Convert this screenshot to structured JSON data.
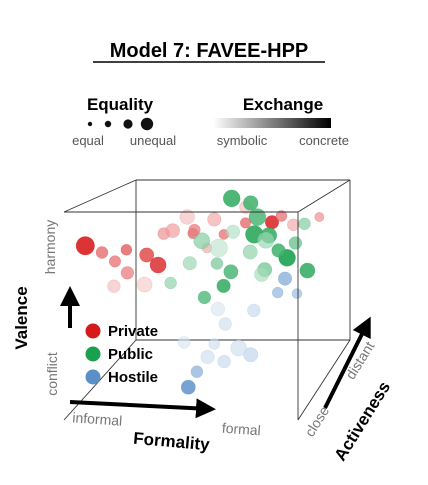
{
  "chart_data": {
    "type": "scatter3d",
    "title": "Model 7: FAVEE-HPP",
    "size_legend": {
      "title": "Equality",
      "low_label": "equal",
      "high_label": "unequal",
      "levels": [
        1,
        2,
        3,
        4
      ]
    },
    "shade_legend": {
      "title": "Exchange",
      "low_label": "symbolic",
      "high_label": "concrete"
    },
    "axes": {
      "x": {
        "label": "Formality",
        "low_label": "informal",
        "high_label": "formal",
        "range": [
          0,
          1
        ]
      },
      "y": {
        "label": "Activeness",
        "low_label": "close",
        "high_label": "distant",
        "range": [
          0,
          1
        ]
      },
      "z": {
        "label": "Valence",
        "low_label": "conflict",
        "high_label": "harmony",
        "range": [
          0,
          1
        ]
      }
    },
    "legend": {
      "position": "bottom-left",
      "show_series_names": true
    },
    "series": [
      {
        "name": "Private",
        "color": "#d7191c",
        "points": [
          {
            "x": 0.08,
            "y": 0.05,
            "z": 0.83,
            "equality": 3.2,
            "exchange": 0.95
          },
          {
            "x": 0.14,
            "y": 0.1,
            "z": 0.79,
            "equality": 1.6,
            "exchange": 0.6
          },
          {
            "x": 0.2,
            "y": 0.08,
            "z": 0.75,
            "equality": 1.5,
            "exchange": 0.55
          },
          {
            "x": 0.24,
            "y": 0.12,
            "z": 0.8,
            "equality": 1.4,
            "exchange": 0.65
          },
          {
            "x": 0.26,
            "y": 0.05,
            "z": 0.7,
            "equality": 1.8,
            "exchange": 0.5
          },
          {
            "x": 0.32,
            "y": 0.15,
            "z": 0.77,
            "equality": 2.2,
            "exchange": 0.75
          },
          {
            "x": 0.38,
            "y": 0.1,
            "z": 0.73,
            "equality": 2.6,
            "exchange": 0.85
          },
          {
            "x": 0.36,
            "y": 0.3,
            "z": 0.85,
            "equality": 1.6,
            "exchange": 0.4
          },
          {
            "x": 0.42,
            "y": 0.2,
            "z": 0.88,
            "equality": 2.1,
            "exchange": 0.35
          },
          {
            "x": 0.44,
            "y": 0.5,
            "z": 0.82,
            "equality": 1.3,
            "exchange": 0.6
          },
          {
            "x": 0.48,
            "y": 0.35,
            "z": 0.86,
            "equality": 1.5,
            "exchange": 0.5
          },
          {
            "x": 0.52,
            "y": 0.55,
            "z": 0.88,
            "equality": 2.0,
            "exchange": 0.3
          },
          {
            "x": 0.55,
            "y": 0.6,
            "z": 0.8,
            "equality": 1.2,
            "exchange": 0.55
          },
          {
            "x": 0.62,
            "y": 0.7,
            "z": 0.84,
            "equality": 1.3,
            "exchange": 0.6
          },
          {
            "x": 0.7,
            "y": 0.85,
            "z": 0.82,
            "equality": 2.0,
            "exchange": 0.9
          },
          {
            "x": 0.74,
            "y": 0.85,
            "z": 0.85,
            "equality": 1.4,
            "exchange": 0.55
          },
          {
            "x": 0.78,
            "y": 0.9,
            "z": 0.8,
            "equality": 1.6,
            "exchange": 0.3
          },
          {
            "x": 0.3,
            "y": 0.2,
            "z": 0.62,
            "equality": 2.4,
            "exchange": 0.15
          },
          {
            "x": 0.18,
            "y": 0.15,
            "z": 0.62,
            "equality": 1.8,
            "exchange": 0.2
          },
          {
            "x": 0.5,
            "y": 0.5,
            "z": 0.75,
            "equality": 1.2,
            "exchange": 0.3
          },
          {
            "x": 0.88,
            "y": 0.95,
            "z": 0.83,
            "equality": 1.0,
            "exchange": 0.4
          },
          {
            "x": 0.6,
            "y": 0.8,
            "z": 0.9,
            "equality": 1.8,
            "exchange": 0.2
          },
          {
            "x": 0.46,
            "y": 0.3,
            "z": 0.93,
            "equality": 2.3,
            "exchange": 0.2
          }
        ]
      },
      {
        "name": "Public",
        "color": "#1aa14f",
        "points": [
          {
            "x": 0.55,
            "y": 0.75,
            "z": 0.95,
            "equality": 2.8,
            "exchange": 0.85
          },
          {
            "x": 0.62,
            "y": 0.8,
            "z": 0.92,
            "equality": 2.3,
            "exchange": 0.8
          },
          {
            "x": 0.66,
            "y": 0.75,
            "z": 0.86,
            "equality": 2.8,
            "exchange": 0.75
          },
          {
            "x": 0.68,
            "y": 0.6,
            "z": 0.8,
            "equality": 3.0,
            "exchange": 0.9
          },
          {
            "x": 0.72,
            "y": 0.7,
            "z": 0.78,
            "equality": 2.5,
            "exchange": 0.85
          },
          {
            "x": 0.75,
            "y": 0.75,
            "z": 0.7,
            "equality": 2.0,
            "exchange": 0.8
          },
          {
            "x": 0.78,
            "y": 0.78,
            "z": 0.66,
            "equality": 2.8,
            "exchange": 0.95
          },
          {
            "x": 0.64,
            "y": 0.7,
            "z": 0.7,
            "equality": 2.2,
            "exchange": 0.4
          },
          {
            "x": 0.55,
            "y": 0.5,
            "z": 0.75,
            "equality": 3.0,
            "exchange": 0.2
          },
          {
            "x": 0.5,
            "y": 0.4,
            "z": 0.8,
            "equality": 2.6,
            "exchange": 0.45
          },
          {
            "x": 0.46,
            "y": 0.35,
            "z": 0.7,
            "equality": 2.0,
            "exchange": 0.35
          },
          {
            "x": 0.58,
            "y": 0.6,
            "z": 0.62,
            "equality": 2.2,
            "exchange": 0.75
          },
          {
            "x": 0.56,
            "y": 0.55,
            "z": 0.56,
            "equality": 2.0,
            "exchange": 0.85
          },
          {
            "x": 0.5,
            "y": 0.45,
            "z": 0.52,
            "equality": 1.8,
            "exchange": 0.7
          },
          {
            "x": 0.7,
            "y": 0.65,
            "z": 0.6,
            "equality": 2.2,
            "exchange": 0.3
          },
          {
            "x": 0.8,
            "y": 0.85,
            "z": 0.72,
            "equality": 1.8,
            "exchange": 0.6
          },
          {
            "x": 0.84,
            "y": 0.9,
            "z": 0.58,
            "equality": 2.4,
            "exchange": 0.85
          },
          {
            "x": 0.74,
            "y": 0.55,
            "z": 0.78,
            "equality": 2.6,
            "exchange": 0.35
          },
          {
            "x": 0.6,
            "y": 0.55,
            "z": 0.82,
            "equality": 2.0,
            "exchange": 0.25
          },
          {
            "x": 0.52,
            "y": 0.6,
            "z": 0.66,
            "equality": 1.6,
            "exchange": 0.5
          },
          {
            "x": 0.68,
            "y": 0.8,
            "z": 0.6,
            "equality": 2.2,
            "exchange": 0.55
          },
          {
            "x": 0.4,
            "y": 0.25,
            "z": 0.62,
            "equality": 1.6,
            "exchange": 0.4
          },
          {
            "x": 0.85,
            "y": 0.8,
            "z": 0.82,
            "equality": 1.6,
            "exchange": 0.45
          }
        ]
      },
      {
        "name": "Hostile",
        "color": "#5b8fc8",
        "points": [
          {
            "x": 0.52,
            "y": 0.05,
            "z": 0.15,
            "equality": 2.2,
            "exchange": 0.9
          },
          {
            "x": 0.55,
            "y": 0.08,
            "z": 0.22,
            "equality": 1.6,
            "exchange": 0.6
          },
          {
            "x": 0.58,
            "y": 0.15,
            "z": 0.28,
            "equality": 2.0,
            "exchange": 0.2
          },
          {
            "x": 0.64,
            "y": 0.2,
            "z": 0.25,
            "equality": 1.8,
            "exchange": 0.25
          },
          {
            "x": 0.68,
            "y": 0.3,
            "z": 0.3,
            "equality": 2.6,
            "exchange": 0.2
          },
          {
            "x": 0.72,
            "y": 0.35,
            "z": 0.26,
            "equality": 2.2,
            "exchange": 0.3
          },
          {
            "x": 0.6,
            "y": 0.4,
            "z": 0.4,
            "equality": 1.8,
            "exchange": 0.2
          },
          {
            "x": 0.7,
            "y": 0.5,
            "z": 0.45,
            "equality": 1.8,
            "exchange": 0.25
          },
          {
            "x": 0.78,
            "y": 0.6,
            "z": 0.52,
            "equality": 1.4,
            "exchange": 0.55
          },
          {
            "x": 0.8,
            "y": 0.65,
            "z": 0.58,
            "equality": 2.0,
            "exchange": 0.65
          },
          {
            "x": 0.84,
            "y": 0.7,
            "z": 0.5,
            "equality": 1.2,
            "exchange": 0.5
          },
          {
            "x": 0.48,
            "y": 0.15,
            "z": 0.35,
            "equality": 1.6,
            "exchange": 0.15
          },
          {
            "x": 0.62,
            "y": 0.1,
            "z": 0.35,
            "equality": 1.4,
            "exchange": 0.2
          },
          {
            "x": 0.58,
            "y": 0.35,
            "z": 0.48,
            "equality": 2.0,
            "exchange": 0.15
          }
        ]
      }
    ]
  }
}
